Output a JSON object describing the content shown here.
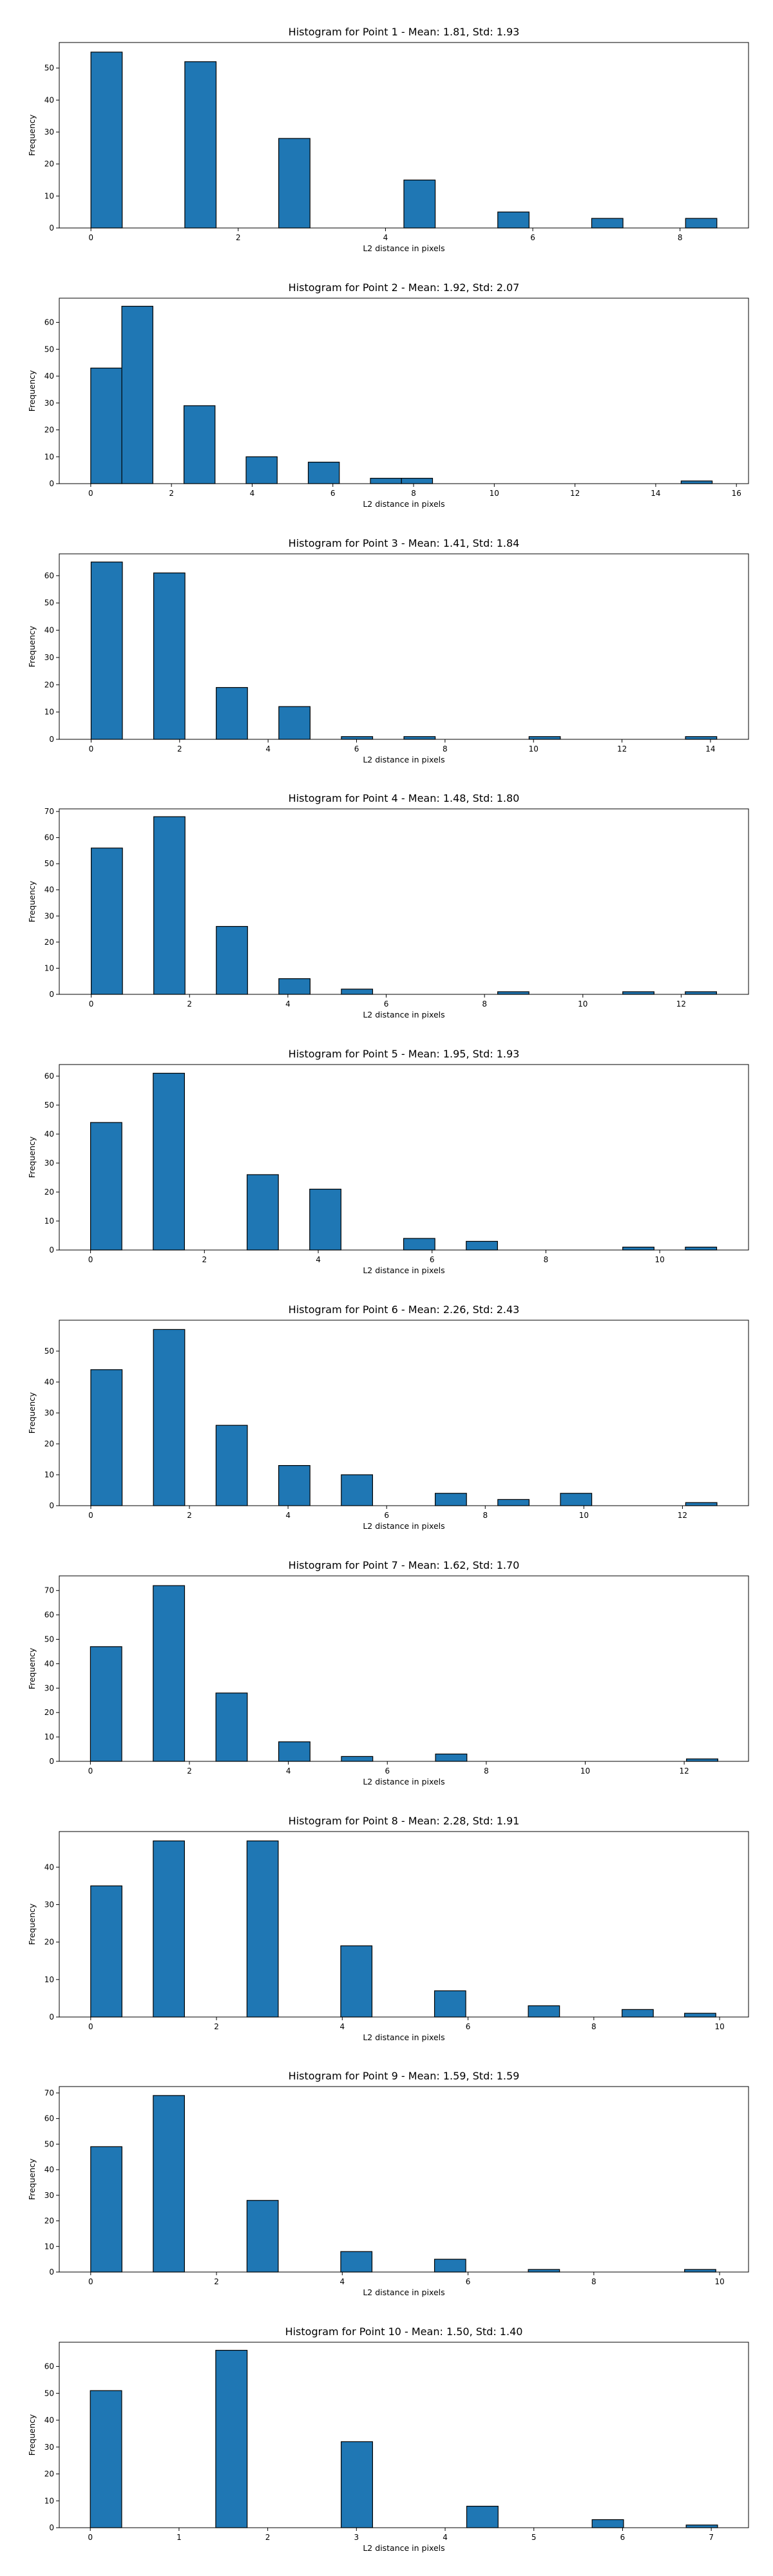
{
  "chart_data": [
    {
      "type": "bar",
      "title": "Histogram for Point 1 - Mean: 1.81, Std: 1.93",
      "xlabel": "L2 distance in pixels",
      "ylabel": "Frequency",
      "xlim": [
        -0.43,
        8.93
      ],
      "ylim": [
        0,
        58
      ],
      "xticks": [
        0,
        2,
        4,
        6,
        8
      ],
      "yticks": [
        0,
        10,
        20,
        30,
        40,
        50
      ],
      "bin_width": 0.425,
      "bins": [
        {
          "x": 0,
          "value": 55
        },
        {
          "x": 1.275,
          "value": 52
        },
        {
          "x": 2.55,
          "value": 28
        },
        {
          "x": 4.25,
          "value": 15
        },
        {
          "x": 5.525,
          "value": 5
        },
        {
          "x": 6.8,
          "value": 3
        },
        {
          "x": 8.075,
          "value": 3
        }
      ]
    },
    {
      "type": "bar",
      "title": "Histogram for Point 2 - Mean: 1.92, Std: 2.07",
      "xlabel": "L2 distance in pixels",
      "ylabel": "Frequency",
      "xlim": [
        -0.78,
        16.3
      ],
      "ylim": [
        0,
        69
      ],
      "xticks": [
        0,
        2,
        4,
        6,
        8,
        10,
        12,
        14,
        16
      ],
      "yticks": [
        0,
        10,
        20,
        30,
        40,
        50,
        60
      ],
      "bin_width": 0.77,
      "bins": [
        {
          "x": 0,
          "value": 43
        },
        {
          "x": 0.77,
          "value": 66
        },
        {
          "x": 2.31,
          "value": 29
        },
        {
          "x": 3.85,
          "value": 10
        },
        {
          "x": 5.39,
          "value": 8
        },
        {
          "x": 6.93,
          "value": 2
        },
        {
          "x": 7.7,
          "value": 2
        },
        {
          "x": 14.63,
          "value": 1
        }
      ]
    },
    {
      "type": "bar",
      "title": "Histogram for Point 3 - Mean: 1.41, Std: 1.84",
      "xlabel": "L2 distance in pixels",
      "ylabel": "Frequency",
      "xlim": [
        -0.72,
        14.86
      ],
      "ylim": [
        0,
        68
      ],
      "xticks": [
        0,
        2,
        4,
        6,
        8,
        10,
        12,
        14
      ],
      "yticks": [
        0,
        10,
        20,
        30,
        40,
        50,
        60
      ],
      "bin_width": 0.707,
      "bins": [
        {
          "x": 0,
          "value": 65
        },
        {
          "x": 1.414,
          "value": 61
        },
        {
          "x": 2.828,
          "value": 19
        },
        {
          "x": 4.243,
          "value": 12
        },
        {
          "x": 5.657,
          "value": 1
        },
        {
          "x": 7.071,
          "value": 1
        },
        {
          "x": 9.899,
          "value": 1
        },
        {
          "x": 13.435,
          "value": 1
        }
      ]
    },
    {
      "type": "bar",
      "title": "Histogram for Point 4 - Mean: 1.48, Std: 1.80",
      "xlabel": "L2 distance in pixels",
      "ylabel": "Frequency",
      "xlim": [
        -0.65,
        13.37
      ],
      "ylim": [
        0,
        71
      ],
      "xticks": [
        0,
        2,
        4,
        6,
        8,
        10,
        12
      ],
      "yticks": [
        0,
        10,
        20,
        30,
        40,
        50,
        60,
        70
      ],
      "bin_width": 0.636,
      "bins": [
        {
          "x": 0,
          "value": 56
        },
        {
          "x": 1.272,
          "value": 68
        },
        {
          "x": 2.544,
          "value": 26
        },
        {
          "x": 3.816,
          "value": 6
        },
        {
          "x": 5.088,
          "value": 2
        },
        {
          "x": 8.268,
          "value": 1
        },
        {
          "x": 10.812,
          "value": 1
        },
        {
          "x": 12.084,
          "value": 1
        }
      ]
    },
    {
      "type": "bar",
      "title": "Histogram for Point 5 - Mean: 1.95, Std: 1.93",
      "xlabel": "L2 distance in pixels",
      "ylabel": "Frequency",
      "xlim": [
        -0.55,
        11.56
      ],
      "ylim": [
        0,
        64
      ],
      "xticks": [
        0,
        2,
        4,
        6,
        8,
        10
      ],
      "yticks": [
        0,
        10,
        20,
        30,
        40,
        50,
        60
      ],
      "bin_width": 0.55,
      "bins": [
        {
          "x": 0,
          "value": 44
        },
        {
          "x": 1.1,
          "value": 61
        },
        {
          "x": 2.75,
          "value": 26
        },
        {
          "x": 3.85,
          "value": 21
        },
        {
          "x": 5.5,
          "value": 4
        },
        {
          "x": 6.6,
          "value": 3
        },
        {
          "x": 9.35,
          "value": 1
        },
        {
          "x": 10.45,
          "value": 1
        }
      ]
    },
    {
      "type": "bar",
      "title": "Histogram for Point 6 - Mean: 2.26, Std: 2.43",
      "xlabel": "L2 distance in pixels",
      "ylabel": "Frequency",
      "xlim": [
        -0.64,
        13.34
      ],
      "ylim": [
        0,
        60
      ],
      "xticks": [
        0,
        2,
        4,
        6,
        8,
        10,
        12
      ],
      "yticks": [
        0,
        10,
        20,
        30,
        40,
        50
      ],
      "bin_width": 0.635,
      "bins": [
        {
          "x": 0,
          "value": 44
        },
        {
          "x": 1.27,
          "value": 57
        },
        {
          "x": 2.54,
          "value": 26
        },
        {
          "x": 3.81,
          "value": 13
        },
        {
          "x": 5.08,
          "value": 10
        },
        {
          "x": 6.985,
          "value": 4
        },
        {
          "x": 8.255,
          "value": 2
        },
        {
          "x": 9.525,
          "value": 4
        },
        {
          "x": 12.065,
          "value": 1
        }
      ]
    },
    {
      "type": "bar",
      "title": "Histogram for Point 7 - Mean: 1.62, Std: 1.70",
      "xlabel": "L2 distance in pixels",
      "ylabel": "Frequency",
      "xlim": [
        -0.63,
        13.3
      ],
      "ylim": [
        0,
        76
      ],
      "xticks": [
        0,
        2,
        4,
        6,
        8,
        10,
        12
      ],
      "yticks": [
        0,
        10,
        20,
        30,
        40,
        50,
        60,
        70
      ],
      "bin_width": 0.634,
      "bins": [
        {
          "x": 0,
          "value": 47
        },
        {
          "x": 1.268,
          "value": 72
        },
        {
          "x": 2.536,
          "value": 28
        },
        {
          "x": 3.804,
          "value": 8
        },
        {
          "x": 5.072,
          "value": 2
        },
        {
          "x": 6.974,
          "value": 3
        },
        {
          "x": 12.046,
          "value": 1
        }
      ]
    },
    {
      "type": "bar",
      "title": "Histogram for Point 8 - Mean: 2.28, Std: 1.91",
      "xlabel": "L2 distance in pixels",
      "ylabel": "Frequency",
      "xlim": [
        -0.5,
        10.46
      ],
      "ylim": [
        0,
        49.5
      ],
      "xticks": [
        0,
        2,
        4,
        6,
        8,
        10
      ],
      "yticks": [
        0,
        10,
        20,
        30,
        40
      ],
      "bin_width": 0.497,
      "bins": [
        {
          "x": 0,
          "value": 35
        },
        {
          "x": 0.994,
          "value": 47
        },
        {
          "x": 2.485,
          "value": 47
        },
        {
          "x": 3.976,
          "value": 19
        },
        {
          "x": 5.467,
          "value": 7
        },
        {
          "x": 6.958,
          "value": 3
        },
        {
          "x": 8.449,
          "value": 2
        },
        {
          "x": 9.443,
          "value": 1
        }
      ]
    },
    {
      "type": "bar",
      "title": "Histogram for Point 9 - Mean: 1.59, Std: 1.59",
      "xlabel": "L2 distance in pixels",
      "ylabel": "Frequency",
      "xlim": [
        -0.5,
        10.46
      ],
      "ylim": [
        0,
        72.5
      ],
      "xticks": [
        0,
        2,
        4,
        6,
        8,
        10
      ],
      "yticks": [
        0,
        10,
        20,
        30,
        40,
        50,
        60,
        70
      ],
      "bin_width": 0.497,
      "bins": [
        {
          "x": 0,
          "value": 49
        },
        {
          "x": 0.994,
          "value": 69
        },
        {
          "x": 2.485,
          "value": 28
        },
        {
          "x": 3.976,
          "value": 8
        },
        {
          "x": 5.467,
          "value": 5
        },
        {
          "x": 6.958,
          "value": 1
        },
        {
          "x": 9.443,
          "value": 1
        }
      ]
    },
    {
      "type": "bar",
      "title": "Histogram for Point 10 - Mean: 1.50, Std: 1.40",
      "xlabel": "L2 distance in pixels",
      "ylabel": "Frequency",
      "xlim": [
        -0.35,
        7.42
      ],
      "ylim": [
        0,
        69
      ],
      "xticks": [
        0,
        1,
        2,
        3,
        4,
        5,
        6,
        7
      ],
      "yticks": [
        0,
        10,
        20,
        30,
        40,
        50,
        60
      ],
      "bin_width": 0.354,
      "bins": [
        {
          "x": 0,
          "value": 51
        },
        {
          "x": 1.414,
          "value": 66
        },
        {
          "x": 2.828,
          "value": 32
        },
        {
          "x": 4.243,
          "value": 8
        },
        {
          "x": 5.657,
          "value": 3
        },
        {
          "x": 6.717,
          "value": 1
        }
      ]
    }
  ]
}
